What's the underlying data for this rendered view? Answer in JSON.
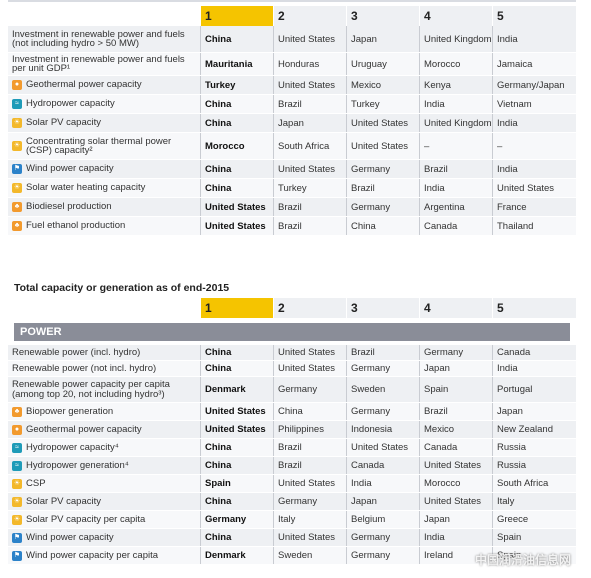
{
  "table1": {
    "ranks": [
      "1",
      "2",
      "3",
      "4",
      "5"
    ],
    "rows": [
      {
        "label": "Investment in renewable power and fuels (not including hydro > 50 MW)",
        "icon": "",
        "c": [
          "China",
          "United States",
          "Japan",
          "United Kingdom",
          "India"
        ]
      },
      {
        "label": "Investment in renewable power and fuels per unit GDP¹",
        "icon": "",
        "c": [
          "Mauritania",
          "Honduras",
          "Uruguay",
          "Morocco",
          "Jamaica"
        ]
      },
      {
        "label": "Geothermal power capacity",
        "icon": "geothermal-icon",
        "c": [
          "Turkey",
          "United States",
          "Mexico",
          "Kenya",
          "Germany/Japan"
        ]
      },
      {
        "label": "Hydropower capacity",
        "icon": "hydropower-icon",
        "c": [
          "China",
          "Brazil",
          "Turkey",
          "India",
          "Vietnam"
        ]
      },
      {
        "label": "Solar PV capacity",
        "icon": "solar-icon",
        "c": [
          "China",
          "Japan",
          "United States",
          "United Kingdom",
          "India"
        ]
      },
      {
        "label": "Concentrating solar thermal power (CSP) capacity²",
        "icon": "csp-icon",
        "c": [
          "Morocco",
          "South Africa",
          "United States",
          "–",
          "–"
        ]
      },
      {
        "label": "Wind power capacity",
        "icon": "wind-icon",
        "c": [
          "China",
          "United States",
          "Germany",
          "Brazil",
          "India"
        ]
      },
      {
        "label": "Solar water heating capacity",
        "icon": "solar-heat-icon",
        "c": [
          "China",
          "Turkey",
          "Brazil",
          "India",
          "United States"
        ]
      },
      {
        "label": "Biodiesel production",
        "icon": "biofuel-icon",
        "c": [
          "United States",
          "Brazil",
          "Germany",
          "Argentina",
          "France"
        ]
      },
      {
        "label": "Fuel ethanol production",
        "icon": "biofuel-icon",
        "c": [
          "United States",
          "Brazil",
          "China",
          "Canada",
          "Thailand"
        ]
      }
    ]
  },
  "section_title": "Total capacity or generation as of end-2015",
  "table2": {
    "ranks": [
      "1",
      "2",
      "3",
      "4",
      "5"
    ],
    "band": "POWER",
    "rows": [
      {
        "label": "Renewable power (incl. hydro)",
        "icon": "",
        "c": [
          "China",
          "United States",
          "Brazil",
          "Germany",
          "Canada"
        ]
      },
      {
        "label": "Renewable power (not incl. hydro)",
        "icon": "",
        "c": [
          "China",
          "United States",
          "Germany",
          "Japan",
          "India"
        ]
      },
      {
        "label": "Renewable power capacity per capita (among top 20, not including hydro³)",
        "icon": "",
        "c": [
          "Denmark",
          "Germany",
          "Sweden",
          "Spain",
          "Portugal"
        ]
      },
      {
        "label": "Biopower generation",
        "icon": "biofuel-icon",
        "c": [
          "United States",
          "China",
          "Germany",
          "Brazil",
          "Japan"
        ]
      },
      {
        "label": "Geothermal power capacity",
        "icon": "geothermal-icon",
        "c": [
          "United States",
          "Philippines",
          "Indonesia",
          "Mexico",
          "New Zealand"
        ]
      },
      {
        "label": "Hydropower capacity⁴",
        "icon": "hydropower-icon",
        "c": [
          "China",
          "Brazil",
          "United States",
          "Canada",
          "Russia"
        ]
      },
      {
        "label": "Hydropower generation⁴",
        "icon": "hydropower-icon",
        "c": [
          "China",
          "Brazil",
          "Canada",
          "United States",
          "Russia"
        ]
      },
      {
        "label": "CSP",
        "icon": "csp-icon",
        "c": [
          "Spain",
          "United States",
          "India",
          "Morocco",
          "South Africa"
        ]
      },
      {
        "label": "Solar PV capacity",
        "icon": "solar-icon",
        "c": [
          "China",
          "Germany",
          "Japan",
          "United States",
          "Italy"
        ]
      },
      {
        "label": "Solar PV capacity per capita",
        "icon": "solar-icon",
        "c": [
          "Germany",
          "Italy",
          "Belgium",
          "Japan",
          "Greece"
        ]
      },
      {
        "label": "Wind power capacity",
        "icon": "wind-icon",
        "c": [
          "China",
          "United States",
          "Germany",
          "India",
          "Spain"
        ]
      },
      {
        "label": "Wind power capacity per capita",
        "icon": "wind-icon",
        "c": [
          "Denmark",
          "Sweden",
          "Germany",
          "Ireland",
          "Spain"
        ]
      }
    ]
  },
  "watermark": "中国润滑油信息网",
  "colors": {
    "gold": "#f5c400",
    "band": "#8a8d98"
  }
}
